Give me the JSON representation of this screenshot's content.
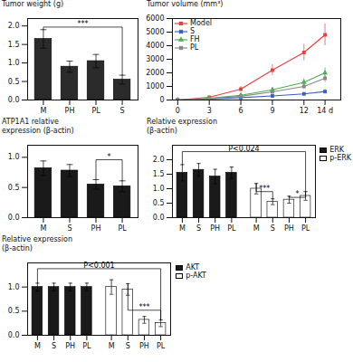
{
  "chart_data": [
    {
      "type": "bar",
      "categories": [
        "M",
        "PH",
        "PL",
        "S"
      ],
      "values": [
        1.65,
        0.9,
        1.05,
        0.55
      ],
      "errors": [
        0.25,
        0.15,
        0.18,
        0.12
      ],
      "color": "#2b2b2b",
      "ylabel": "Tumor weight (g)",
      "ylim": [
        0,
        2.2
      ],
      "yticks": [
        {
          "value": 0,
          "label": "0.0"
        },
        0.5,
        {
          "value": 1,
          "label": "1.0"
        },
        1.5,
        {
          "value": 2,
          "label": "2.0"
        }
      ],
      "grid": false,
      "annotations": [
        {
          "text": "***",
          "from": "M",
          "to": "S",
          "y": 1.97
        }
      ]
    },
    {
      "type": "line",
      "x": [
        0,
        3,
        6,
        9,
        12,
        14
      ],
      "xlim": [
        -0.5,
        15.5
      ],
      "xticks": [
        0,
        3,
        6,
        9,
        12,
        {
          "value": 14,
          "label": "14 d"
        }
      ],
      "ylabel": "Tumor volume (mm³)",
      "ylim": [
        0,
        6000
      ],
      "yticks": [
        0,
        1000,
        2000,
        3000,
        4000,
        5000,
        6000
      ],
      "grid": false,
      "legend": "upper left",
      "series": [
        {
          "name": "Model",
          "color": "#e84040",
          "marker": "square",
          "values": [
            0,
            200,
            800,
            2200,
            3500,
            4800
          ],
          "errors": [
            0,
            100,
            200,
            400,
            600,
            800
          ]
        },
        {
          "name": "S",
          "color": "#3a5fc7",
          "marker": "square",
          "values": [
            0,
            80,
            180,
            300,
            450,
            620
          ],
          "errors": [
            0,
            40,
            60,
            80,
            100,
            150
          ]
        },
        {
          "name": "FH",
          "color": "#4caf50",
          "marker": "triangle",
          "values": [
            0,
            120,
            350,
            750,
            1300,
            2000
          ],
          "errors": [
            0,
            50,
            100,
            180,
            280,
            380
          ]
        },
        {
          "name": "PL",
          "color": "#888888",
          "marker": "square",
          "values": [
            0,
            100,
            280,
            600,
            1000,
            1600
          ],
          "errors": [
            0,
            45,
            90,
            140,
            220,
            320
          ]
        }
      ]
    },
    {
      "type": "bar",
      "categories": [
        "M",
        "S",
        "PH",
        "PL"
      ],
      "values": [
        0.82,
        0.78,
        0.55,
        0.52
      ],
      "errors": [
        0.12,
        0.1,
        0.08,
        0.09
      ],
      "color": "#1a1a1a",
      "ylabel": "ATP1A1 relative\nexpression (β-actin)",
      "ylim": [
        0,
        1.2
      ],
      "yticks": [
        {
          "value": 0,
          "label": "0.0"
        },
        0.5,
        {
          "value": 1,
          "label": "1.0"
        }
      ],
      "grid": false,
      "annotations": [
        {
          "text": "*",
          "from": "PH",
          "to": "PL",
          "y": 0.96
        }
      ]
    },
    {
      "type": "bar",
      "categories": [
        "M",
        "S",
        "PH",
        "PL"
      ],
      "series": [
        {
          "name": "ERK",
          "color": "#1a1a1a",
          "values": [
            1.55,
            1.65,
            1.42,
            1.55
          ],
          "errors": [
            0.28,
            0.22,
            0.25,
            0.2
          ]
        },
        {
          "name": "p-ERK",
          "color": "#ffffff",
          "values": [
            1.0,
            0.55,
            0.62,
            0.75
          ],
          "errors": [
            0.18,
            0.1,
            0.12,
            0.15
          ]
        }
      ],
      "ylabel": "Relative expression\n(β-actin)",
      "ylim": [
        0,
        2.5
      ],
      "yticks": [
        {
          "value": 0,
          "label": "0.0"
        },
        0.5,
        {
          "value": 1,
          "label": "1.0"
        },
        1.5,
        {
          "value": 2,
          "label": "2.0"
        }
      ],
      "grid": false,
      "legend": "upper right",
      "annotations": [
        {
          "text": "P<0.024",
          "from": {
            "series": "ERK",
            "category": "M"
          },
          "to": {
            "series": "p-ERK",
            "category": "PL"
          },
          "y": 2.28
        },
        {
          "text": "***",
          "from": {
            "series": "p-ERK",
            "category": "M"
          },
          "to": {
            "series": "p-ERK",
            "category": "S"
          },
          "y": 0.9
        },
        {
          "text": "*",
          "from": {
            "series": "p-ERK",
            "category": "PH"
          },
          "to": {
            "series": "p-ERK",
            "category": "PL"
          },
          "y": 0.7
        }
      ]
    },
    {
      "type": "bar",
      "categories": [
        "M",
        "S",
        "PH",
        "PL"
      ],
      "series": [
        {
          "name": "AKT",
          "color": "#1a1a1a",
          "values": [
            1.0,
            1.0,
            1.0,
            1.0
          ],
          "errors": [
            0.08,
            0.08,
            0.08,
            0.08
          ]
        },
        {
          "name": "p-AKT",
          "color": "#ffffff",
          "values": [
            1.0,
            0.95,
            0.32,
            0.25
          ],
          "errors": [
            0.15,
            0.12,
            0.07,
            0.07
          ]
        }
      ],
      "ylabel": "Relative expression\n(β-actin)",
      "ylim": [
        0,
        1.5
      ],
      "yticks": [
        {
          "value": 0,
          "label": "0.0"
        },
        0.5,
        {
          "value": 1,
          "label": "1.0"
        }
      ],
      "grid": false,
      "legend": "upper right",
      "annotations": [
        {
          "text": "P<0.001",
          "from": {
            "series": "AKT",
            "category": "M"
          },
          "to": {
            "series": "p-AKT",
            "category": "PL"
          },
          "y": 1.38
        },
        {
          "text": "***",
          "from": {
            "series": "p-AKT",
            "category": "S"
          },
          "to": {
            "series": "p-AKT",
            "category": "PL"
          },
          "y": 0.52
        }
      ]
    }
  ]
}
